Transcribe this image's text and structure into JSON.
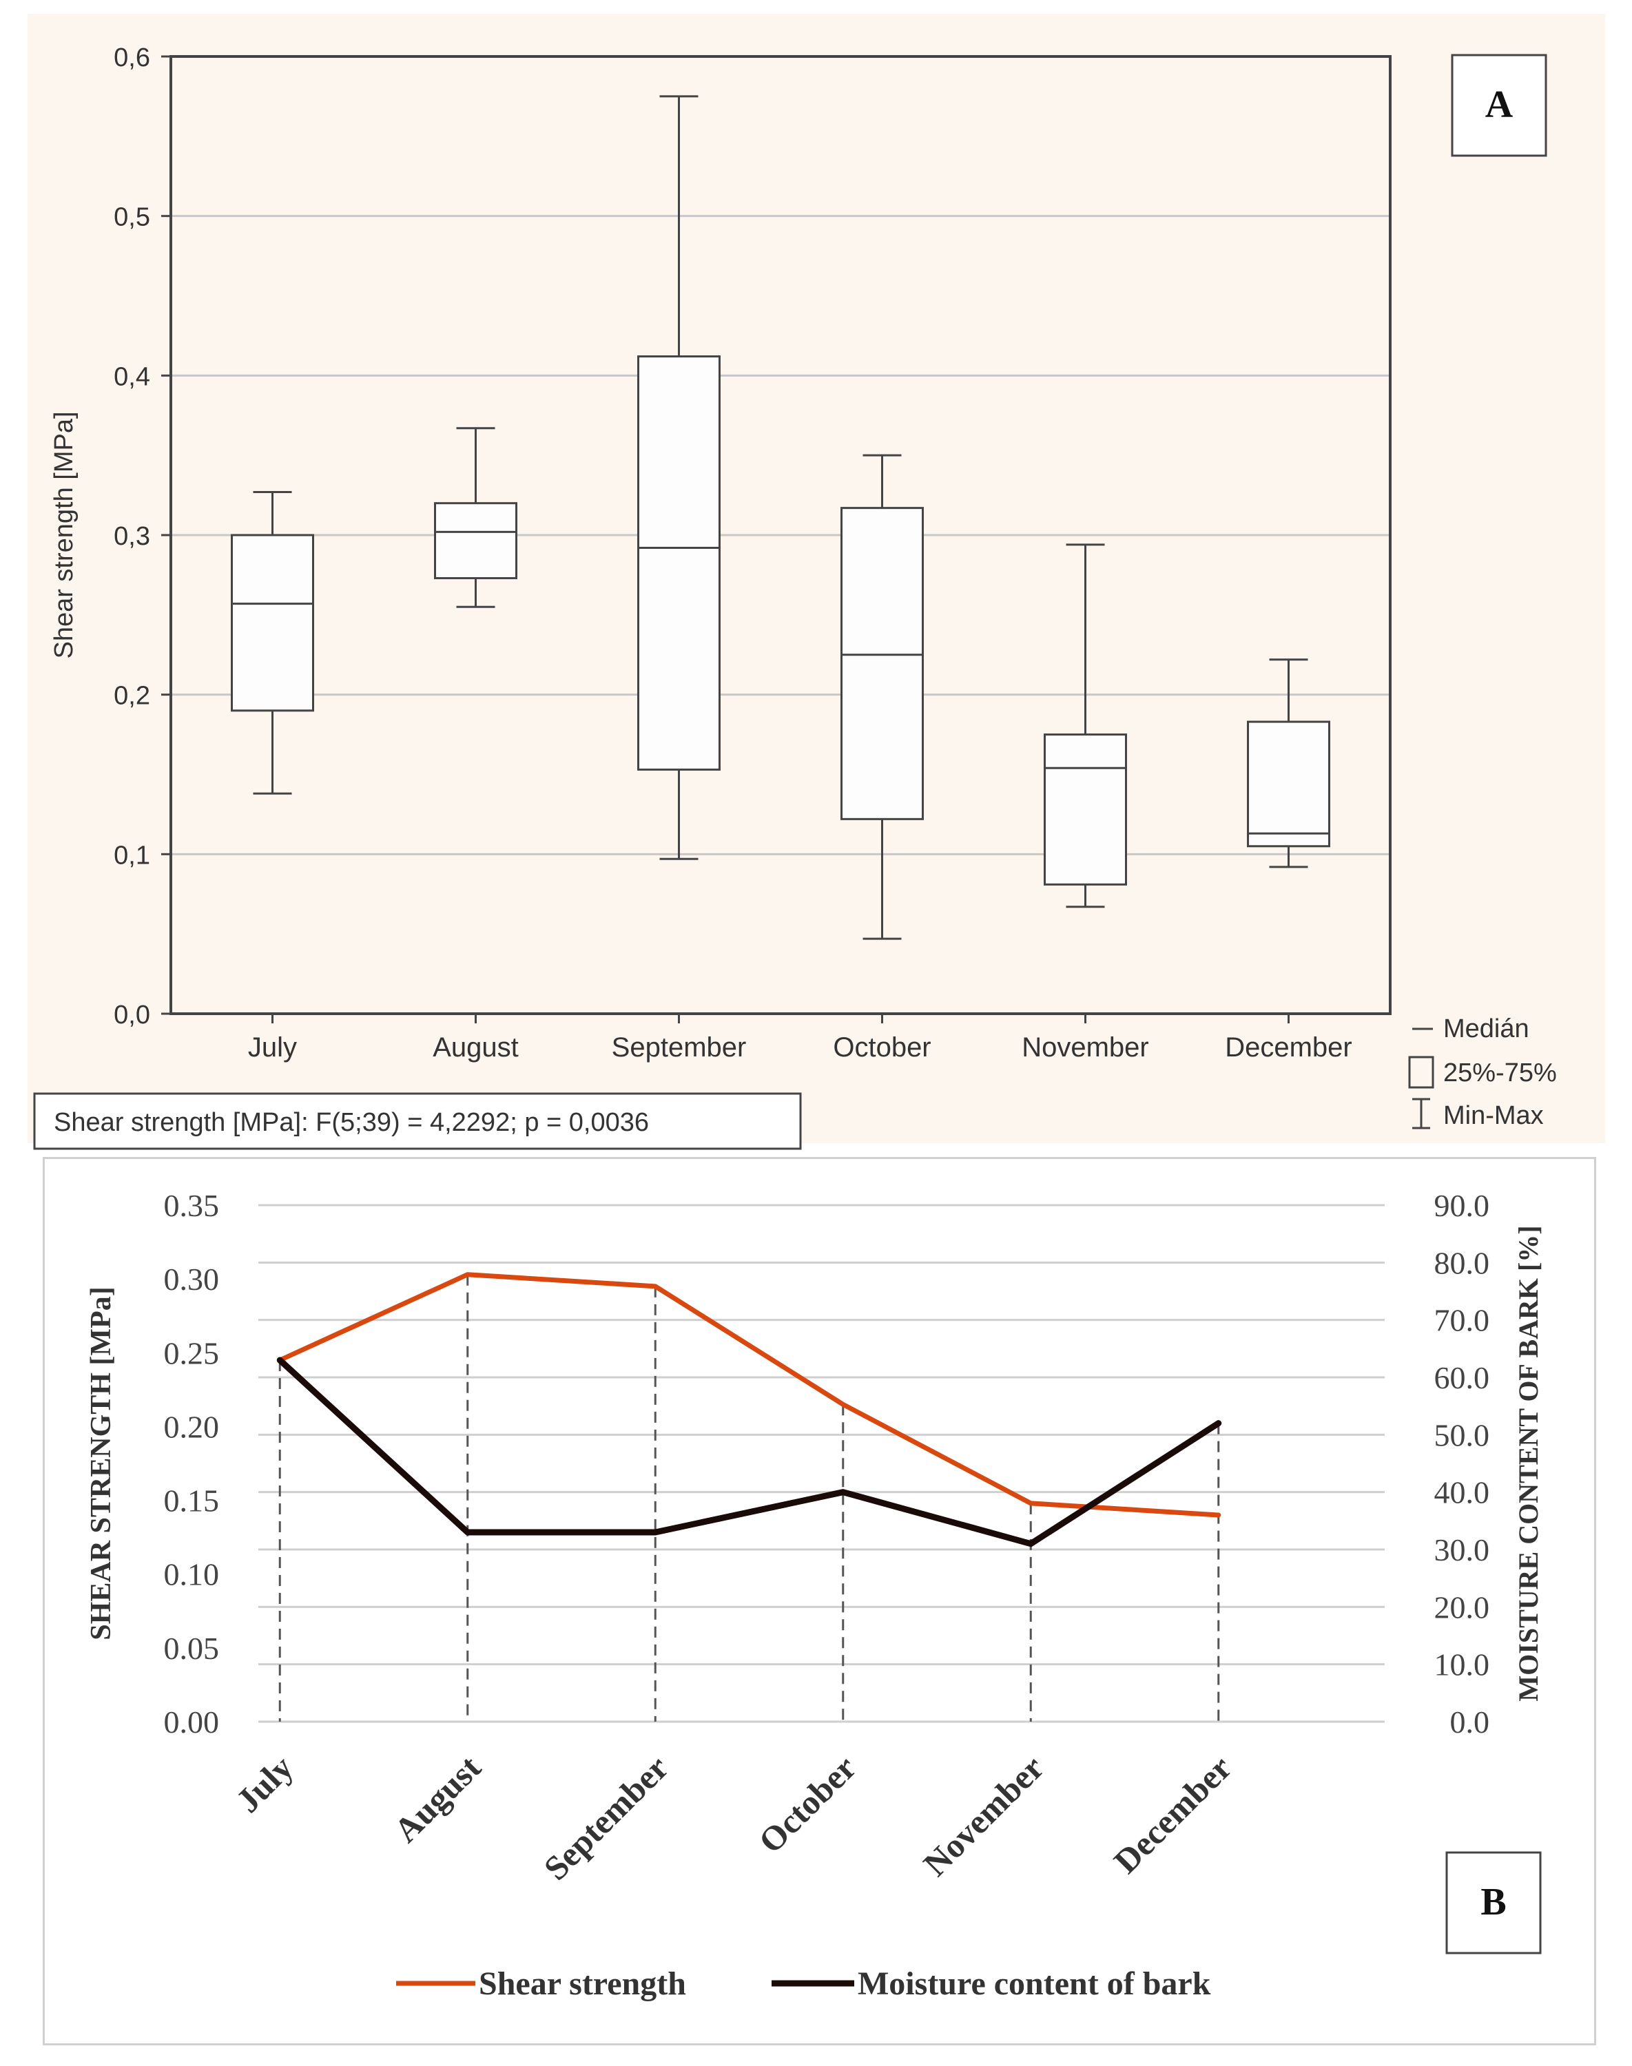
{
  "chart_data": [
    {
      "id": "A",
      "type": "boxplot",
      "panel_label": "A",
      "ylabel": "Shear strength [MPa]",
      "ylim": [
        0,
        0.6
      ],
      "yticks": [
        0,
        0.1,
        0.2,
        0.3,
        0.4,
        0.5,
        0.6
      ],
      "ytick_labels": [
        "0,0",
        "0,1",
        "0,2",
        "0,3",
        "0,4",
        "0,5",
        "0,6"
      ],
      "categories": [
        "July",
        "August",
        "September",
        "October",
        "November",
        "December"
      ],
      "boxes": [
        {
          "min": 0.138,
          "q1": 0.19,
          "median": 0.257,
          "q3": 0.3,
          "max": 0.327
        },
        {
          "min": 0.255,
          "q1": 0.273,
          "median": 0.302,
          "q3": 0.32,
          "max": 0.367
        },
        {
          "min": 0.097,
          "q1": 0.153,
          "median": 0.292,
          "q3": 0.412,
          "max": 0.575
        },
        {
          "min": 0.047,
          "q1": 0.122,
          "median": 0.225,
          "q3": 0.317,
          "max": 0.35
        },
        {
          "min": 0.067,
          "q1": 0.081,
          "median": 0.154,
          "q3": 0.175,
          "max": 0.294
        },
        {
          "min": 0.092,
          "q1": 0.105,
          "median": 0.113,
          "q3": 0.183,
          "max": 0.222
        }
      ],
      "legend": [
        "Medián",
        "25%-75%",
        "Min-Max"
      ],
      "stats_label": "Shear strength [MPa]:   F(5;39) = 4,2292; p = 0,0036",
      "grid": true
    },
    {
      "id": "B",
      "type": "line",
      "panel_label": "B",
      "categories": [
        "July",
        "August",
        "September",
        "October",
        "November",
        "December"
      ],
      "ylabel_left": "SHEAR STRENGTH [MPa]",
      "ylabel_right": "MOISTURE CONTENT OF BARK [%]",
      "ylim_left": [
        0,
        0.35
      ],
      "ylim_right": [
        0,
        90
      ],
      "yticks_left": [
        "0.00",
        "0.05",
        "0.10",
        "0.15",
        "0.20",
        "0.25",
        "0.30",
        "0.35"
      ],
      "yticks_right": [
        "0.0",
        "10.0",
        "20.0",
        "30.0",
        "40.0",
        "50.0",
        "60.0",
        "70.0",
        "80.0",
        "90.0"
      ],
      "series": [
        {
          "name": "Shear strength",
          "axis": "left",
          "color": "#d9480f",
          "values": [
            0.245,
            0.303,
            0.295,
            0.215,
            0.148,
            0.14
          ]
        },
        {
          "name": "Moisture content of bark",
          "axis": "right",
          "color": "#1a0a08",
          "values": [
            63,
            33,
            33,
            40,
            31,
            52
          ]
        }
      ],
      "grid": true
    }
  ],
  "colors": {
    "box_stroke": "#444444",
    "grid": "#c8c8c8",
    "shear": "#d9480f",
    "moisture": "#1a0a08"
  }
}
